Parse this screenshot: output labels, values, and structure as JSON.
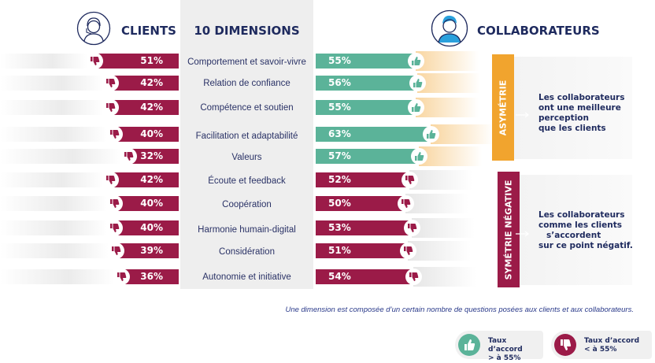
{
  "header": {
    "clients": "CLIENTS",
    "dimensions": "10 DIMENSIONS",
    "collaborateurs": "COLLABORATEURS"
  },
  "colors": {
    "red": "#9b1b48",
    "green": "#5bb399",
    "orange": "#f1a42e",
    "navy": "#1e2a5e"
  },
  "chart_data": {
    "type": "bar",
    "categories": [
      "Comportement et savoir-vivre",
      "Relation de confiance",
      "Compétence et soutien",
      "Facilitation et adaptabilité",
      "Valeurs",
      "Écoute et feedback",
      "Coopération",
      "Harmonie humain-digital",
      "Considération",
      "Autonomie et initiative"
    ],
    "series": [
      {
        "name": "CLIENTS",
        "values": [
          51,
          42,
          42,
          40,
          32,
          42,
          40,
          40,
          39,
          36
        ],
        "labels": [
          "51%",
          "42%",
          "42%",
          "40%",
          "32%",
          "42%",
          "40%",
          "40%",
          "39%",
          "36%"
        ],
        "icons": [
          "thumb-down-icon",
          "thumb-down-icon",
          "thumb-down-icon",
          "thumb-down-icon",
          "thumb-down-icon",
          "thumb-down-icon",
          "thumb-down-icon",
          "thumb-down-icon",
          "thumb-down-icon",
          "thumb-down-icon"
        ]
      },
      {
        "name": "COLLABORATEURS",
        "values": [
          55,
          56,
          55,
          63,
          57,
          52,
          50,
          53,
          51,
          54
        ],
        "labels": [
          "55%",
          "56%",
          "55%",
          "63%",
          "57%",
          "52%",
          "50%",
          "53%",
          "51%",
          "54%"
        ],
        "icons": [
          "thumb-up-icon",
          "thumb-up-icon",
          "thumb-up-icon",
          "thumb-up-icon",
          "thumb-up-icon",
          "thumb-down-icon",
          "thumb-down-icon",
          "thumb-down-icon",
          "thumb-down-icon",
          "thumb-down-icon"
        ]
      }
    ],
    "threshold": 55
  },
  "groups": [
    {
      "band": "ASYMÉTRIE",
      "text": [
        "Les collaborateurs",
        "ont une meilleure",
        "perception",
        "que les clients"
      ]
    },
    {
      "band": "SYMÉTRIE NÉGATIVE",
      "text": [
        "Les collaborateurs",
        "comme les clients",
        "s’accordent",
        "sur ce point négatif."
      ]
    }
  ],
  "footnote": "Une dimension est composée d’un certain nombre de questions posées aux clients et aux collaborateurs.",
  "legend": [
    {
      "icon": "thumb-up-icon",
      "line1": "Taux d’accord",
      "line2": "> à 55%"
    },
    {
      "icon": "thumb-down-icon",
      "line1": "Taux d’accord",
      "line2": "< à 55%"
    }
  ]
}
